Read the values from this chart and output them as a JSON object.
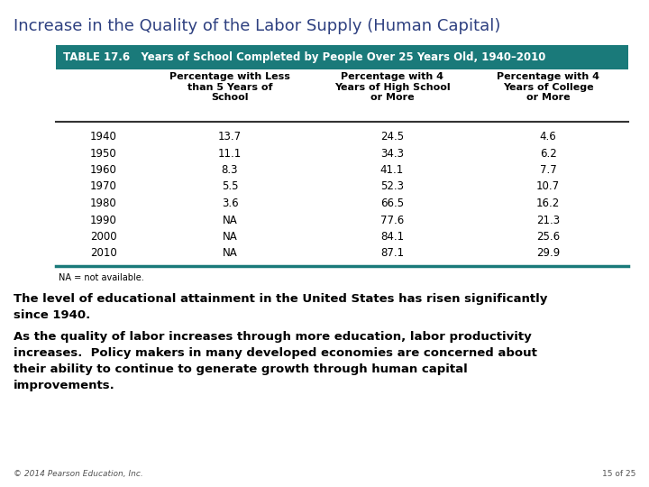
{
  "title": "Increase in the Quality of the Labor Supply (Human Capital)",
  "table_header": "TABLE 17.6   Years of School Completed by People Over 25 Years Old, 1940–2010",
  "col_headers": [
    "Percentage with Less\nthan 5 Years of\nSchool",
    "Percentage with 4\nYears of High School\nor More",
    "Percentage with 4\nYears of College\nor More"
  ],
  "years": [
    "1940",
    "1950",
    "1960",
    "1970",
    "1980",
    "1990",
    "2000",
    "2010"
  ],
  "col1": [
    "13.7",
    "11.1",
    "8.3",
    "5.5",
    "3.6",
    "NA",
    "NA",
    "NA"
  ],
  "col2": [
    "24.5",
    "34.3",
    "41.1",
    "52.3",
    "66.5",
    "77.6",
    "84.1",
    "87.1"
  ],
  "col3": [
    "4.6",
    "6.2",
    "7.7",
    "10.7",
    "16.2",
    "21.3",
    "25.6",
    "29.9"
  ],
  "footnote": "NA = not available.",
  "para1": "The level of educational attainment in the United States has risen significantly\nsince 1940.",
  "para2": "As the quality of labor increases through more education, labor productivity\nincreases.  Policy makers in many developed economies are concerned about\ntheir ability to continue to generate growth through human capital\nimprovements.",
  "footer_left": "© 2014 Pearson Education, Inc.",
  "footer_right": "15 of 25",
  "title_color": "#2E4080",
  "header_bg_color": "#1A7A7A",
  "header_text_color": "#FFFFFF",
  "body_text_color": "#000000",
  "line_color": "#333333",
  "bottom_line_color": "#1A7A7A",
  "bg_color": "#FFFFFF",
  "footer_color": "#555555"
}
